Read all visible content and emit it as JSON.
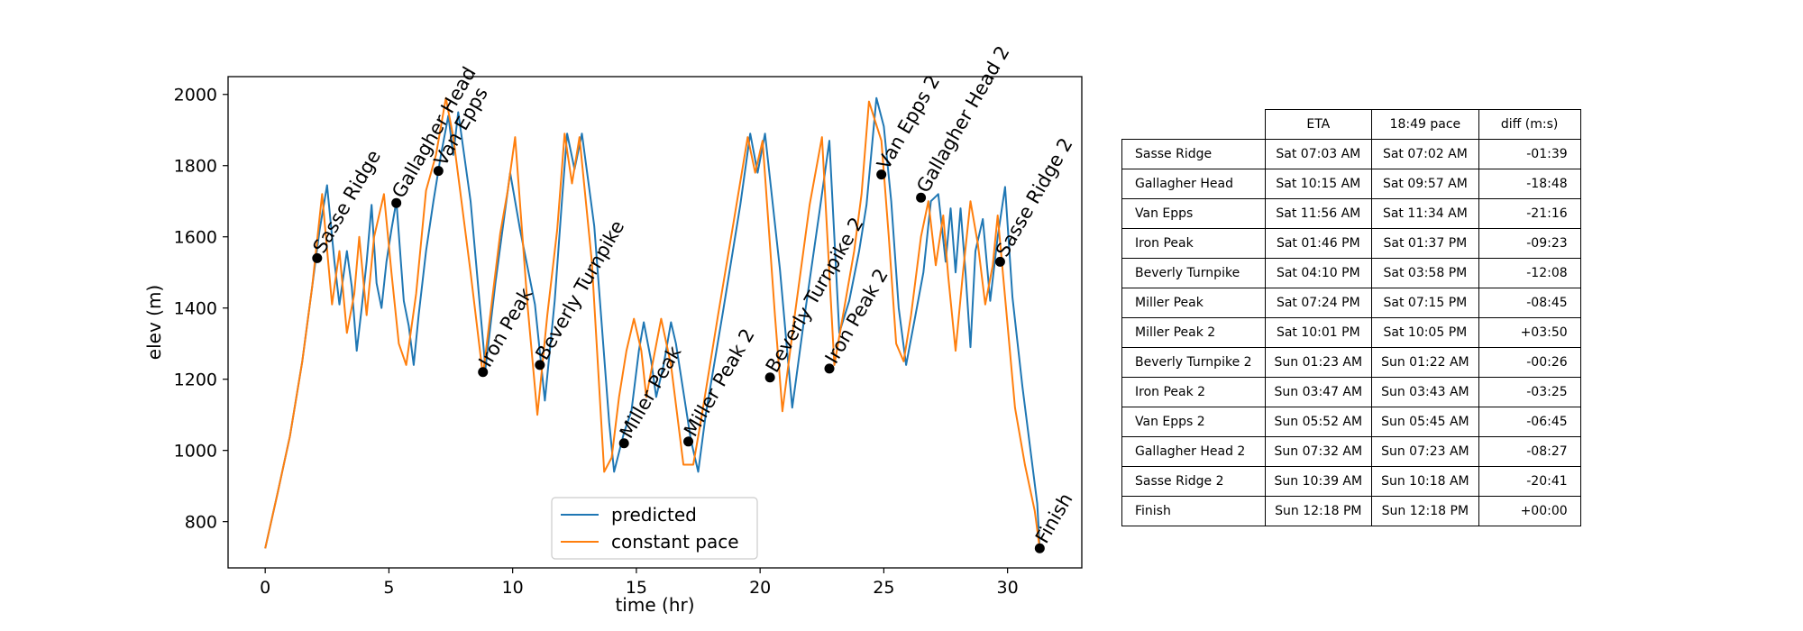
{
  "chart_data": {
    "type": "line",
    "xlabel": "time (hr)",
    "ylabel": "elev (m)",
    "xlim": [
      -1.5,
      33
    ],
    "ylim": [
      670,
      2050
    ],
    "x_ticks": [
      0,
      5,
      10,
      15,
      20,
      25,
      30
    ],
    "y_ticks": [
      800,
      1000,
      1200,
      1400,
      1600,
      1800,
      2000
    ],
    "grid": false,
    "legend_position": "bottom-center",
    "colors": {
      "predicted": "#1f77b4",
      "constant pace": "#ff7f0e"
    },
    "series": [
      {
        "name": "predicted",
        "points": [
          [
            0,
            725
          ],
          [
            0.5,
            880
          ],
          [
            1.0,
            1040
          ],
          [
            1.5,
            1250
          ],
          [
            1.9,
            1460
          ],
          [
            2.2,
            1620
          ],
          [
            2.5,
            1745
          ],
          [
            2.8,
            1530
          ],
          [
            3.0,
            1410
          ],
          [
            3.3,
            1560
          ],
          [
            3.5,
            1460
          ],
          [
            3.7,
            1280
          ],
          [
            3.9,
            1400
          ],
          [
            4.1,
            1530
          ],
          [
            4.3,
            1690
          ],
          [
            4.5,
            1470
          ],
          [
            4.7,
            1400
          ],
          [
            4.9,
            1530
          ],
          [
            5.1,
            1620
          ],
          [
            5.3,
            1700
          ],
          [
            5.6,
            1420
          ],
          [
            5.8,
            1350
          ],
          [
            6.0,
            1240
          ],
          [
            6.2,
            1380
          ],
          [
            6.5,
            1560
          ],
          [
            6.8,
            1700
          ],
          [
            7.1,
            1830
          ],
          [
            7.4,
            1940
          ],
          [
            7.6,
            1830
          ],
          [
            7.8,
            1950
          ],
          [
            8.3,
            1700
          ],
          [
            8.9,
            1230
          ],
          [
            9.3,
            1470
          ],
          [
            9.9,
            1780
          ],
          [
            10.3,
            1620
          ],
          [
            10.9,
            1410
          ],
          [
            11.3,
            1140
          ],
          [
            11.7,
            1420
          ],
          [
            12.0,
            1710
          ],
          [
            12.2,
            1890
          ],
          [
            12.5,
            1790
          ],
          [
            12.8,
            1890
          ],
          [
            13.3,
            1630
          ],
          [
            13.9,
            1080
          ],
          [
            14.1,
            940
          ],
          [
            14.5,
            1050
          ],
          [
            14.8,
            1110
          ],
          [
            15.1,
            1280
          ],
          [
            15.3,
            1360
          ],
          [
            15.6,
            1250
          ],
          [
            15.8,
            1150
          ],
          [
            16.1,
            1240
          ],
          [
            16.4,
            1360
          ],
          [
            16.6,
            1300
          ],
          [
            17.2,
            1030
          ],
          [
            17.5,
            940
          ],
          [
            17.8,
            1100
          ],
          [
            18.5,
            1390
          ],
          [
            19.2,
            1690
          ],
          [
            19.6,
            1890
          ],
          [
            19.9,
            1780
          ],
          [
            20.2,
            1890
          ],
          [
            20.8,
            1510
          ],
          [
            21.3,
            1120
          ],
          [
            21.8,
            1380
          ],
          [
            22.4,
            1670
          ],
          [
            22.8,
            1870
          ],
          [
            23.2,
            1330
          ],
          [
            23.6,
            1420
          ],
          [
            24.0,
            1560
          ],
          [
            24.3,
            1690
          ],
          [
            24.7,
            1990
          ],
          [
            25.0,
            1910
          ],
          [
            25.3,
            1700
          ],
          [
            25.6,
            1400
          ],
          [
            25.9,
            1240
          ],
          [
            26.2,
            1350
          ],
          [
            26.6,
            1500
          ],
          [
            26.9,
            1700
          ],
          [
            27.2,
            1720
          ],
          [
            27.5,
            1530
          ],
          [
            27.7,
            1680
          ],
          [
            27.9,
            1500
          ],
          [
            28.1,
            1680
          ],
          [
            28.3,
            1500
          ],
          [
            28.5,
            1290
          ],
          [
            28.7,
            1560
          ],
          [
            29.0,
            1650
          ],
          [
            29.3,
            1420
          ],
          [
            29.6,
            1600
          ],
          [
            29.9,
            1740
          ],
          [
            30.2,
            1430
          ],
          [
            30.6,
            1180
          ],
          [
            31.0,
            960
          ],
          [
            31.2,
            850
          ],
          [
            31.3,
            725
          ]
        ]
      },
      {
        "name": "constant pace",
        "points": [
          [
            0,
            725
          ],
          [
            0.5,
            880
          ],
          [
            1.0,
            1040
          ],
          [
            1.5,
            1250
          ],
          [
            1.9,
            1460
          ],
          [
            2.3,
            1720
          ],
          [
            2.7,
            1410
          ],
          [
            3.0,
            1560
          ],
          [
            3.3,
            1330
          ],
          [
            3.6,
            1440
          ],
          [
            3.8,
            1600
          ],
          [
            4.1,
            1380
          ],
          [
            4.4,
            1600
          ],
          [
            4.8,
            1720
          ],
          [
            5.1,
            1500
          ],
          [
            5.4,
            1300
          ],
          [
            5.7,
            1240
          ],
          [
            6.1,
            1440
          ],
          [
            6.5,
            1730
          ],
          [
            6.9,
            1830
          ],
          [
            7.3,
            1990
          ],
          [
            7.6,
            1880
          ],
          [
            8.3,
            1500
          ],
          [
            8.8,
            1210
          ],
          [
            9.2,
            1440
          ],
          [
            9.5,
            1610
          ],
          [
            9.8,
            1730
          ],
          [
            10.1,
            1880
          ],
          [
            10.6,
            1410
          ],
          [
            11.0,
            1100
          ],
          [
            11.4,
            1380
          ],
          [
            11.8,
            1620
          ],
          [
            12.1,
            1890
          ],
          [
            12.4,
            1750
          ],
          [
            12.7,
            1880
          ],
          [
            13.2,
            1530
          ],
          [
            13.7,
            940
          ],
          [
            14.0,
            980
          ],
          [
            14.3,
            1150
          ],
          [
            14.6,
            1280
          ],
          [
            14.9,
            1370
          ],
          [
            15.2,
            1280
          ],
          [
            15.4,
            1150
          ],
          [
            15.7,
            1260
          ],
          [
            16.0,
            1370
          ],
          [
            16.4,
            1240
          ],
          [
            16.9,
            960
          ],
          [
            17.3,
            960
          ],
          [
            17.6,
            1080
          ],
          [
            18.3,
            1380
          ],
          [
            18.9,
            1630
          ],
          [
            19.5,
            1880
          ],
          [
            19.8,
            1780
          ],
          [
            20.1,
            1870
          ],
          [
            20.6,
            1380
          ],
          [
            20.9,
            1110
          ],
          [
            21.4,
            1380
          ],
          [
            22.0,
            1690
          ],
          [
            22.5,
            1880
          ],
          [
            23.0,
            1240
          ],
          [
            23.4,
            1400
          ],
          [
            23.8,
            1560
          ],
          [
            24.1,
            1720
          ],
          [
            24.4,
            1980
          ],
          [
            24.9,
            1870
          ],
          [
            25.2,
            1600
          ],
          [
            25.5,
            1300
          ],
          [
            25.8,
            1250
          ],
          [
            26.1,
            1380
          ],
          [
            26.5,
            1600
          ],
          [
            26.8,
            1700
          ],
          [
            27.1,
            1520
          ],
          [
            27.4,
            1660
          ],
          [
            27.6,
            1490
          ],
          [
            27.9,
            1280
          ],
          [
            28.2,
            1500
          ],
          [
            28.5,
            1700
          ],
          [
            28.8,
            1580
          ],
          [
            29.1,
            1410
          ],
          [
            29.4,
            1520
          ],
          [
            29.6,
            1660
          ],
          [
            29.9,
            1430
          ],
          [
            30.3,
            1120
          ],
          [
            30.7,
            960
          ],
          [
            31.1,
            830
          ],
          [
            31.3,
            725
          ]
        ]
      }
    ],
    "waypoints": [
      {
        "label": "Sasse Ridge",
        "t": 2.1,
        "elev": 1540
      },
      {
        "label": "Gallagher Head",
        "t": 5.3,
        "elev": 1695
      },
      {
        "label": "Van Epps",
        "t": 7.0,
        "elev": 1785
      },
      {
        "label": "Iron Peak",
        "t": 8.8,
        "elev": 1220
      },
      {
        "label": "Beverly Turnpike",
        "t": 11.1,
        "elev": 1240
      },
      {
        "label": "Miller Peak",
        "t": 14.5,
        "elev": 1020
      },
      {
        "label": "Miller Peak 2",
        "t": 17.1,
        "elev": 1025
      },
      {
        "label": "Beverly Turnpike 2",
        "t": 20.4,
        "elev": 1205
      },
      {
        "label": "Iron Peak 2",
        "t": 22.8,
        "elev": 1230
      },
      {
        "label": "Van Epps 2",
        "t": 24.9,
        "elev": 1775
      },
      {
        "label": "Gallagher Head 2",
        "t": 26.5,
        "elev": 1710
      },
      {
        "label": "Sasse Ridge 2",
        "t": 29.7,
        "elev": 1530
      },
      {
        "label": "Finish",
        "t": 31.3,
        "elev": 725
      }
    ]
  },
  "table": {
    "headers": [
      "",
      "ETA",
      "18:49 pace",
      "diff (m:s)"
    ],
    "rows": [
      [
        "Sasse Ridge",
        "Sat 07:03 AM",
        "Sat 07:02 AM",
        "-01:39"
      ],
      [
        "Gallagher Head",
        "Sat 10:15 AM",
        "Sat 09:57 AM",
        "-18:48"
      ],
      [
        "Van Epps",
        "Sat 11:56 AM",
        "Sat 11:34 AM",
        "-21:16"
      ],
      [
        "Iron Peak",
        "Sat 01:46 PM",
        "Sat 01:37 PM",
        "-09:23"
      ],
      [
        "Beverly Turnpike",
        "Sat 04:10 PM",
        "Sat 03:58 PM",
        "-12:08"
      ],
      [
        "Miller Peak",
        "Sat 07:24 PM",
        "Sat 07:15 PM",
        "-08:45"
      ],
      [
        "Miller Peak 2",
        "Sat 10:01 PM",
        "Sat 10:05 PM",
        "+03:50"
      ],
      [
        "Beverly Turnpike 2",
        "Sun 01:23 AM",
        "Sun 01:22 AM",
        "-00:26"
      ],
      [
        "Iron Peak 2",
        "Sun 03:47 AM",
        "Sun 03:43 AM",
        "-03:25"
      ],
      [
        "Van Epps 2",
        "Sun 05:52 AM",
        "Sun 05:45 AM",
        "-06:45"
      ],
      [
        "Gallagher Head 2",
        "Sun 07:32 AM",
        "Sun 07:23 AM",
        "-08:27"
      ],
      [
        "Sasse Ridge 2",
        "Sun 10:39 AM",
        "Sun 10:18 AM",
        "-20:41"
      ],
      [
        "Finish",
        "Sun 12:18 PM",
        "Sun 12:18 PM",
        "+00:00"
      ]
    ]
  }
}
